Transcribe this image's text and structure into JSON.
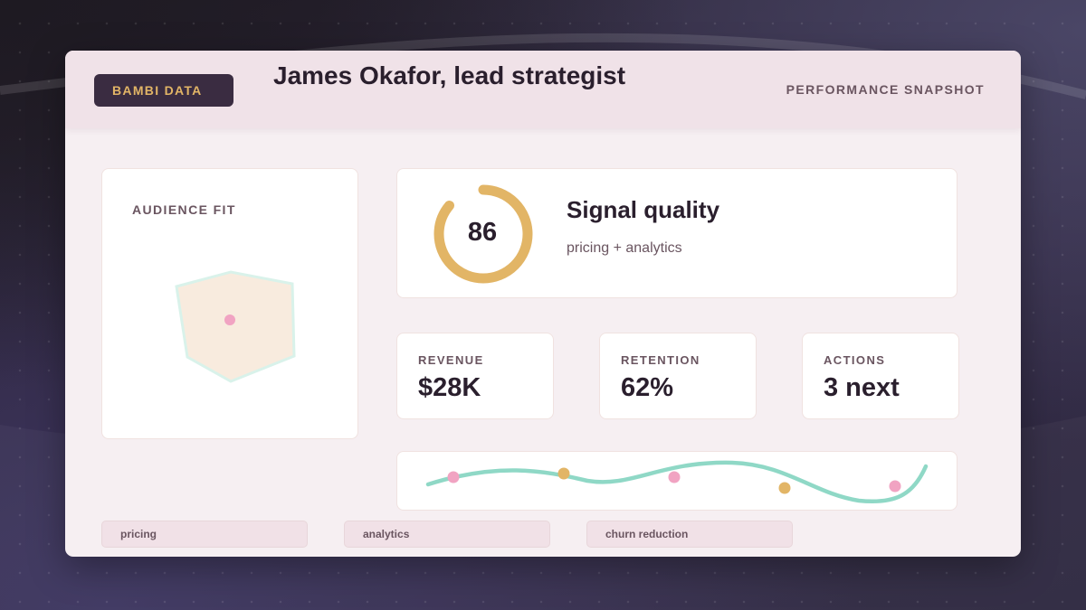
{
  "header": {
    "brand": "BAMBI DATA",
    "title": "James Okafor, lead strategist",
    "section_label": "PERFORMANCE SNAPSHOT"
  },
  "audience_fit": {
    "label": "AUDIENCE FIT"
  },
  "signal_quality": {
    "score": "86",
    "score_fraction": 0.86,
    "title": "Signal quality",
    "subtitle": "pricing + analytics"
  },
  "metrics": [
    {
      "label": "REVENUE",
      "value": "$28K"
    },
    {
      "label": "RETENTION",
      "value": "62%"
    },
    {
      "label": "ACTIONS",
      "value": "3 next"
    }
  ],
  "tags": [
    "pricing",
    "analytics",
    "churn reduction"
  ],
  "colors": {
    "accent_gold": "#e2b566",
    "accent_teal": "#8fd8c6",
    "accent_pink": "#f1a3c2",
    "radar_fill": "#f8ebde",
    "brand_dark": "#3a2c41"
  },
  "icons": {
    "gauge": "ring-gauge",
    "trend": "sparkline"
  }
}
